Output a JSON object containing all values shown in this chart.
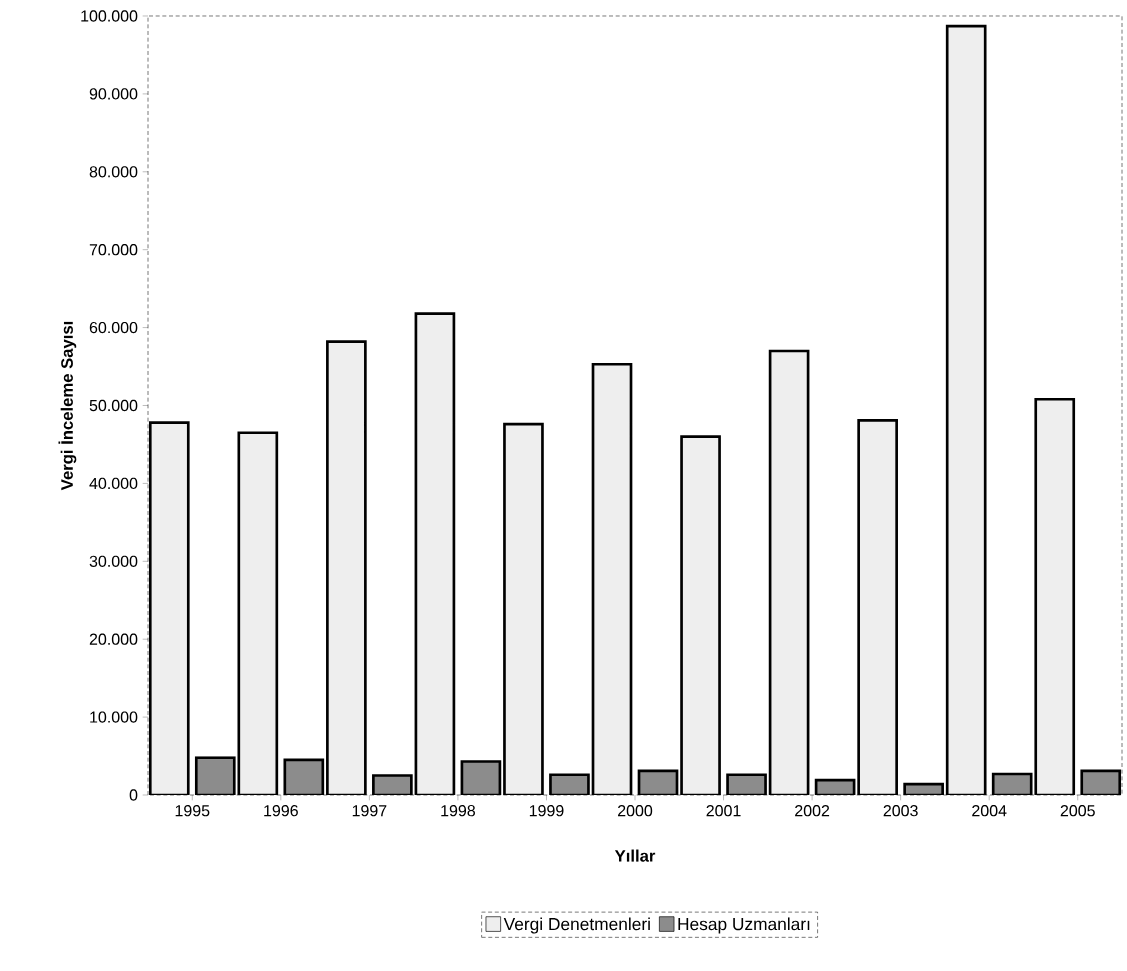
{
  "chart_data": {
    "type": "bar",
    "xlabel": "Yıllar",
    "ylabel": "Vergi İnceleme Sayısı",
    "categories": [
      "1995",
      "1996",
      "1997",
      "1998",
      "1999",
      "2000",
      "2001",
      "2002",
      "2003",
      "2004",
      "2005"
    ],
    "series": [
      {
        "name": "Vergi Denetmenleri",
        "color": "#eeeeee",
        "values": [
          47800,
          46500,
          58200,
          61800,
          47600,
          55300,
          46000,
          57000,
          48100,
          98700,
          50800
        ]
      },
      {
        "name": "Hesap Uzmanları",
        "color": "#8c8c8c",
        "values": [
          4800,
          4500,
          2500,
          4300,
          2600,
          3100,
          2600,
          1900,
          1400,
          2700,
          3100
        ]
      }
    ],
    "ylim": [
      0,
      100000
    ],
    "yticks": [
      {
        "value": 0,
        "label": "0"
      },
      {
        "value": 10000,
        "label": "10.000"
      },
      {
        "value": 20000,
        "label": "20.000"
      },
      {
        "value": 30000,
        "label": "30.000"
      },
      {
        "value": 40000,
        "label": "40.000"
      },
      {
        "value": 50000,
        "label": "50.000"
      },
      {
        "value": 60000,
        "label": "60.000"
      },
      {
        "value": 70000,
        "label": "70.000"
      },
      {
        "value": 80000,
        "label": "80.000"
      },
      {
        "value": 90000,
        "label": "90.000"
      },
      {
        "value": 100000,
        "label": "100.000"
      }
    ],
    "legend": "bottom"
  }
}
